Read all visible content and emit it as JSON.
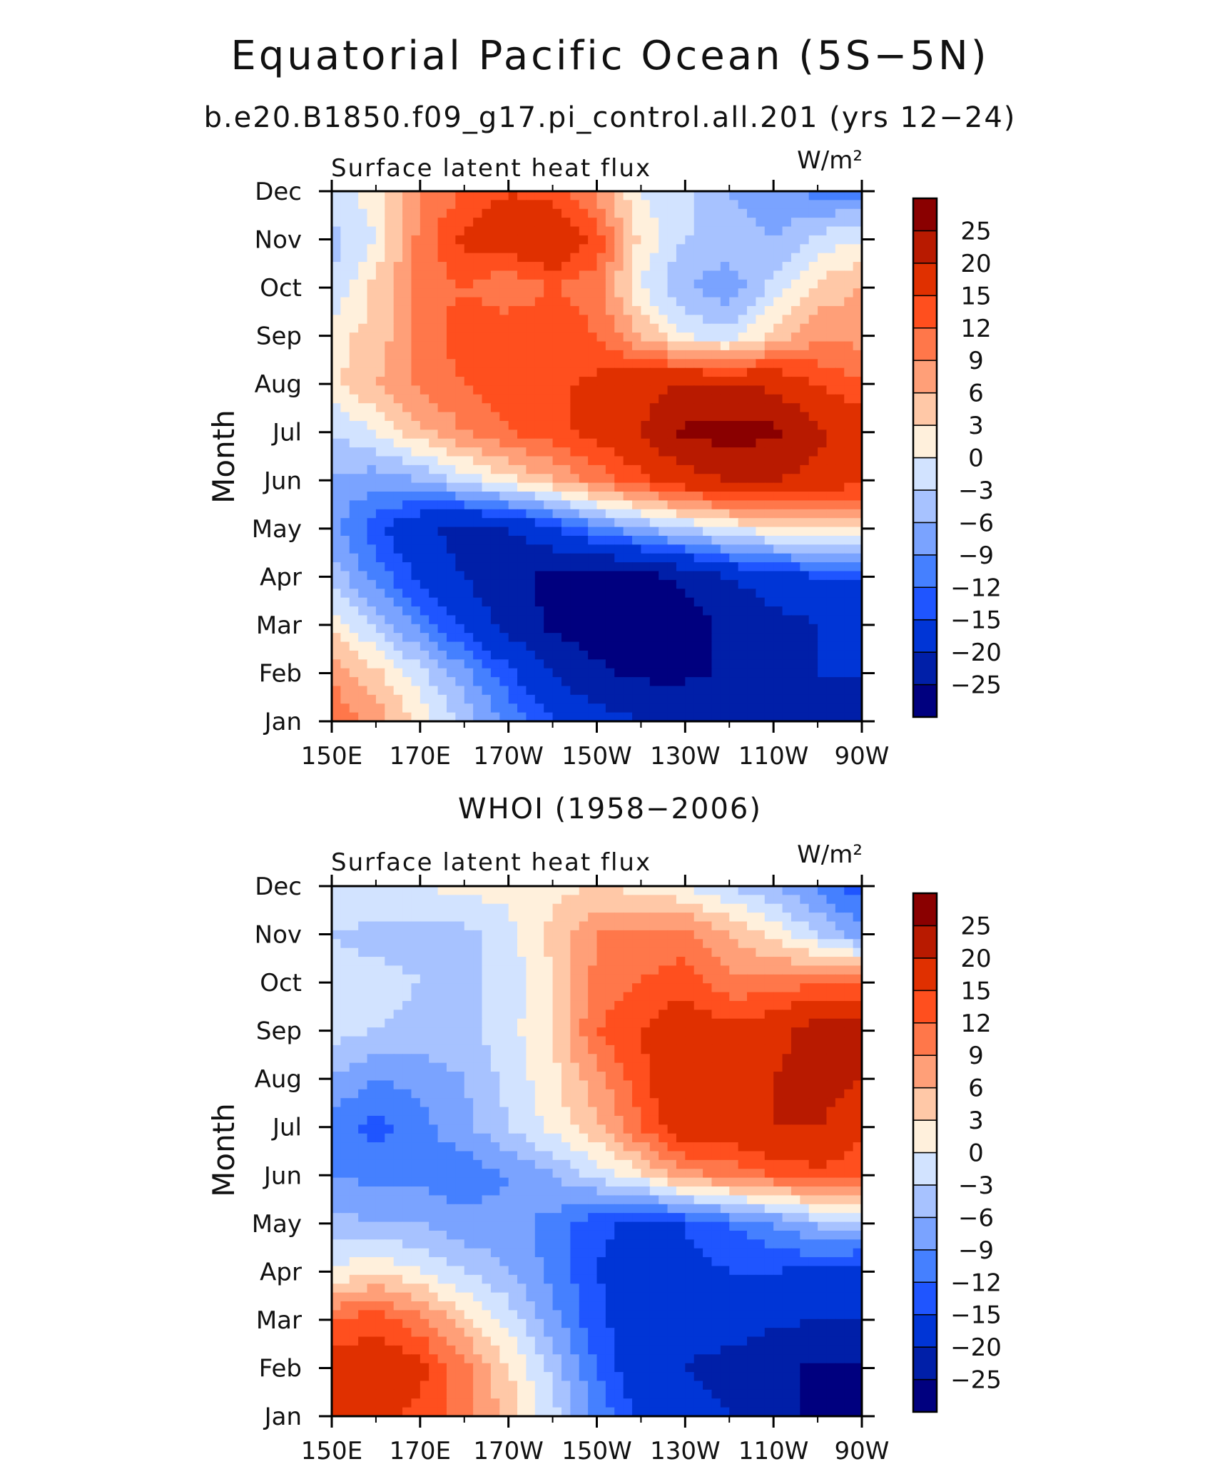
{
  "figure": {
    "title": "Equatorial Pacific Ocean (5S−5N)"
  },
  "colors": [
    "#00007f",
    "#001fa8",
    "#0035d6",
    "#1f55ff",
    "#4580ff",
    "#7aa3ff",
    "#a7c2ff",
    "#d2e3ff",
    "#fff0dc",
    "#ffc8a7",
    "#ff9f78",
    "#ff774a",
    "#ff4f1e",
    "#e03000",
    "#b81a00",
    "#8a0000"
  ],
  "chart_data": [
    {
      "type": "heatmap",
      "subtitle": "b.e20.B1850.f09_g17.pi_control.all.201 (yrs 12−24)",
      "title": "Surface latent heat flux",
      "units": "W/m²",
      "xlabel": "",
      "ylabel": "Month",
      "x": [
        150,
        160,
        170,
        180,
        190,
        200,
        210,
        220,
        230,
        240,
        250,
        260,
        270
      ],
      "x_tick_labels": [
        "150E",
        "170E",
        "170W",
        "150W",
        "130W",
        "110W",
        "90W"
      ],
      "y_tick_labels": [
        "Jan",
        "Feb",
        "Mar",
        "Apr",
        "May",
        "Jun",
        "Jul",
        "Aug",
        "Sep",
        "Oct",
        "Nov",
        "Dec"
      ],
      "levels": [
        -25,
        -20,
        -15,
        -12,
        -9,
        -6,
        -3,
        0,
        3,
        6,
        9,
        12,
        15,
        20,
        25
      ],
      "values": [
        [
          12,
          8,
          2,
          -4,
          -10,
          -15,
          -18,
          -20,
          -21,
          -22,
          -22,
          -22,
          -22
        ],
        [
          8,
          4,
          -2,
          -8,
          -14,
          -20,
          -24,
          -26,
          -26,
          -24,
          -22,
          -20,
          -20
        ],
        [
          2,
          -4,
          -10,
          -16,
          -22,
          -26,
          -28,
          -28,
          -27,
          -24,
          -22,
          -20,
          -20
        ],
        [
          -4,
          -10,
          -16,
          -20,
          -24,
          -26,
          -28,
          -27,
          -24,
          -20,
          -17,
          -15,
          -15
        ],
        [
          -8,
          -14,
          -19,
          -22,
          -20,
          -16,
          -10,
          -6,
          -3,
          0,
          2,
          3,
          4
        ],
        [
          -6,
          -8,
          -6,
          -2,
          2,
          6,
          10,
          14,
          18,
          20,
          20,
          18,
          16
        ],
        [
          -3,
          0,
          5,
          9,
          12,
          14,
          16,
          20,
          26,
          27,
          26,
          21,
          18
        ],
        [
          2,
          6,
          10,
          12,
          14,
          14,
          16,
          18,
          20,
          20,
          19,
          15,
          12
        ],
        [
          2,
          4,
          10,
          14,
          15,
          15,
          12,
          6,
          0,
          -2,
          4,
          8,
          8
        ],
        [
          -3,
          4,
          10,
          12,
          9,
          12,
          10,
          0,
          -6,
          -8,
          -2,
          4,
          6
        ],
        [
          -4,
          0,
          10,
          16,
          18,
          20,
          14,
          2,
          -3,
          -4,
          -6,
          -2,
          0
        ],
        [
          -2,
          2,
          9,
          12,
          15,
          13,
          8,
          0,
          -2,
          -6,
          -8,
          -10,
          -10
        ]
      ]
    },
    {
      "type": "heatmap",
      "subtitle": "WHOI (1958−2006)",
      "title": "Surface latent heat flux",
      "units": "W/m²",
      "xlabel": "",
      "ylabel": "Month",
      "x": [
        150,
        160,
        170,
        180,
        190,
        200,
        210,
        220,
        230,
        240,
        250,
        260,
        270
      ],
      "x_tick_labels": [
        "150E",
        "170E",
        "170W",
        "150W",
        "130W",
        "110W",
        "90W"
      ],
      "y_tick_labels": [
        "Jan",
        "Feb",
        "Mar",
        "Apr",
        "May",
        "Jun",
        "Jul",
        "Aug",
        "Sep",
        "Oct",
        "Nov",
        "Dec"
      ],
      "levels": [
        -25,
        -20,
        -15,
        -12,
        -9,
        -6,
        -3,
        0,
        3,
        6,
        9,
        12,
        15,
        20,
        25
      ],
      "values": [
        [
          15,
          16,
          14,
          10,
          5,
          -2,
          -10,
          -16,
          -18,
          -20,
          -24,
          -26,
          -26
        ],
        [
          17,
          18,
          16,
          10,
          3,
          -4,
          -12,
          -18,
          -20,
          -22,
          -24,
          -26,
          -26
        ],
        [
          12,
          14,
          10,
          4,
          -1,
          -8,
          -14,
          -18,
          -18,
          -17,
          -19,
          -20,
          -20
        ],
        [
          0,
          3,
          0,
          -3,
          -6,
          -10,
          -15,
          -18,
          -16,
          -15,
          -15,
          -16,
          -18
        ],
        [
          -5,
          -6,
          -6,
          -8,
          -8,
          -10,
          -14,
          -16,
          -15,
          -12,
          -9,
          -5,
          -3
        ],
        [
          -9,
          -10,
          -10,
          -11,
          -9,
          -6,
          -2,
          2,
          8,
          10,
          12,
          14,
          12
        ],
        [
          -11,
          -13,
          -10,
          -7,
          -3,
          1,
          5,
          12,
          18,
          18,
          20,
          20,
          16
        ],
        [
          -6,
          -9,
          -8,
          -6,
          -2,
          2,
          8,
          14,
          20,
          16,
          20,
          23,
          20
        ],
        [
          -2,
          -3,
          -4,
          -4,
          -1,
          3,
          12,
          15,
          18,
          16,
          18,
          22,
          22
        ],
        [
          -2,
          -2,
          -3,
          -4,
          -2,
          3,
          10,
          12,
          14,
          10,
          10,
          12,
          12
        ],
        [
          -3,
          -4,
          -4,
          -4,
          -1,
          4,
          9,
          10,
          10,
          6,
          2,
          -3,
          -8
        ],
        [
          0,
          0,
          0,
          1,
          1,
          2,
          3,
          2,
          0,
          -3,
          -6,
          -10,
          -14
        ]
      ]
    }
  ]
}
